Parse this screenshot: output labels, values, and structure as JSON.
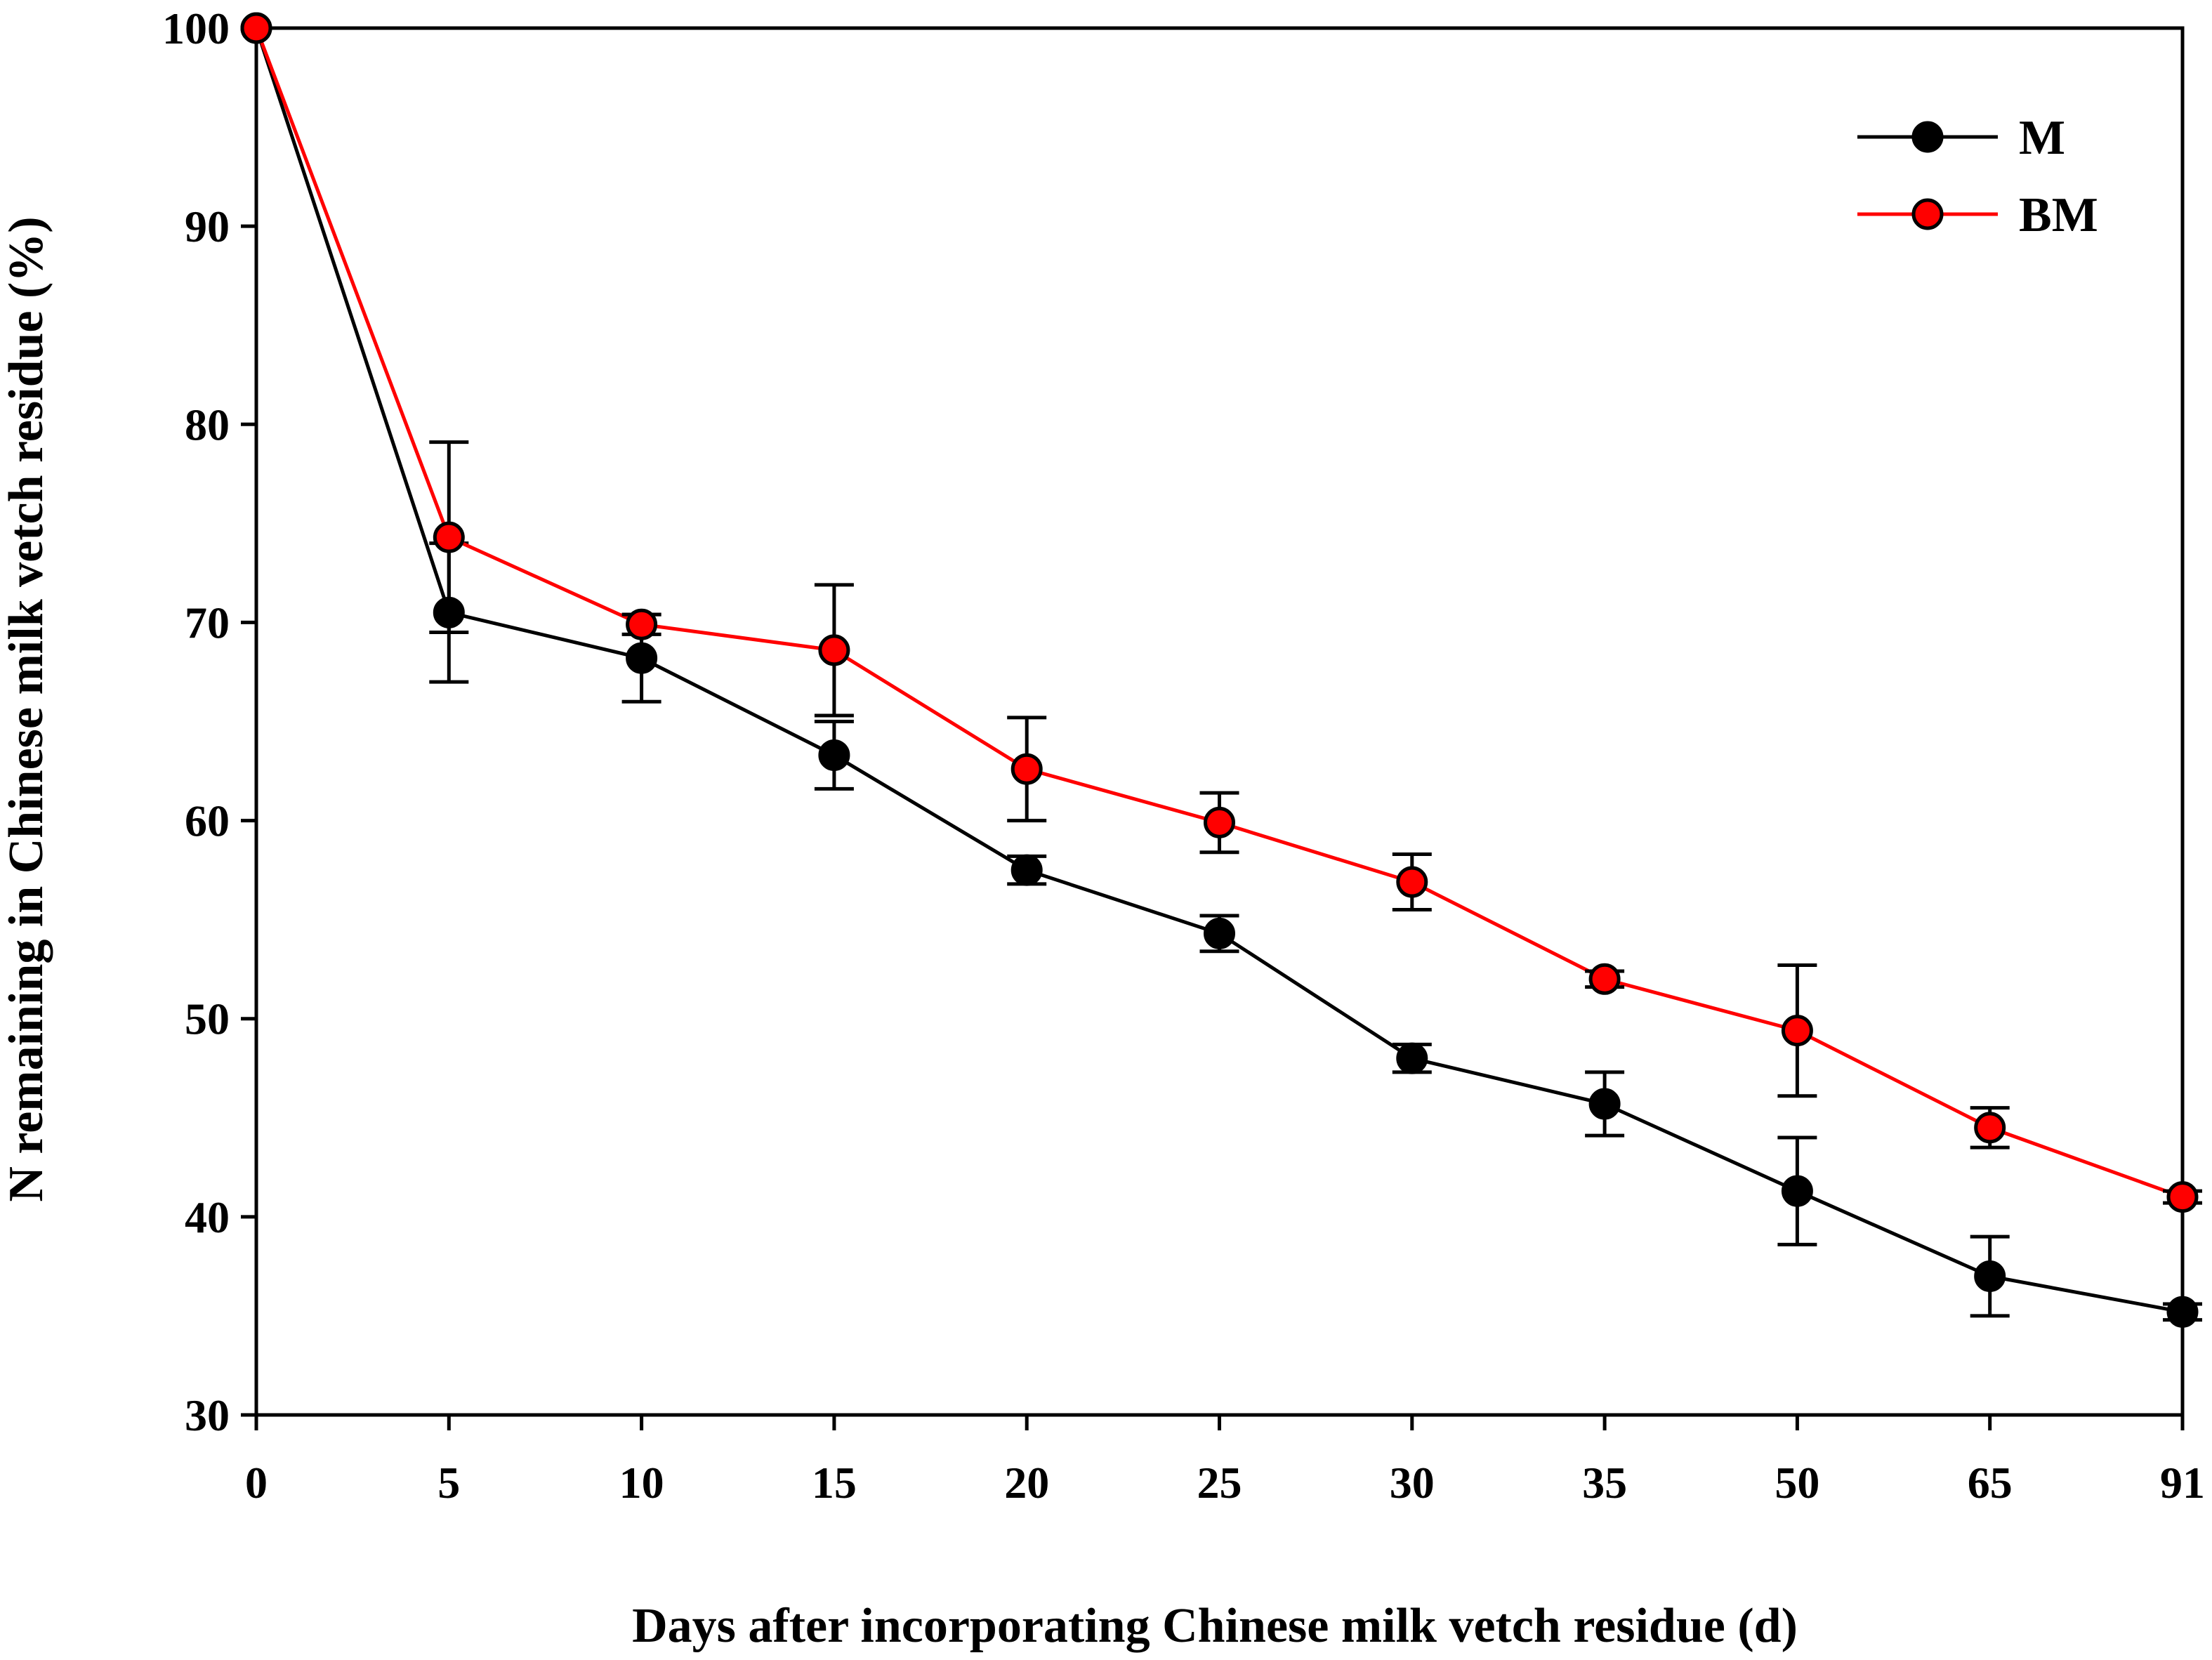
{
  "chart_data": {
    "type": "line",
    "title": "",
    "xlabel": "Days after incorporating Chinese milk vetch residue (d)",
    "ylabel": "N remaining in Chinese milk vetch residue (%)",
    "categories": [
      "0",
      "5",
      "10",
      "15",
      "20",
      "25",
      "30",
      "35",
      "50",
      "65",
      "91"
    ],
    "ylim": [
      30,
      100
    ],
    "yticks": [
      30,
      40,
      50,
      60,
      70,
      80,
      90,
      100
    ],
    "grid": false,
    "legend_position": "top-right",
    "series": [
      {
        "name": "M",
        "color": "#000000",
        "marker": "circle",
        "values": [
          100,
          70.5,
          68.2,
          63.3,
          57.5,
          54.3,
          48.0,
          45.7,
          41.3,
          37.0,
          35.2
        ],
        "errors": [
          0,
          3.5,
          2.2,
          1.7,
          0.7,
          0.9,
          0.7,
          1.6,
          2.7,
          2.0,
          0.4
        ]
      },
      {
        "name": "BM",
        "color": "#ff0000",
        "marker": "circle",
        "values": [
          100,
          74.3,
          69.9,
          68.6,
          62.6,
          59.9,
          56.9,
          52.0,
          49.4,
          44.5,
          41.0
        ],
        "errors": [
          0,
          4.8,
          0.5,
          3.3,
          2.6,
          1.5,
          1.4,
          0.4,
          3.3,
          1.0,
          0.3
        ]
      }
    ]
  }
}
